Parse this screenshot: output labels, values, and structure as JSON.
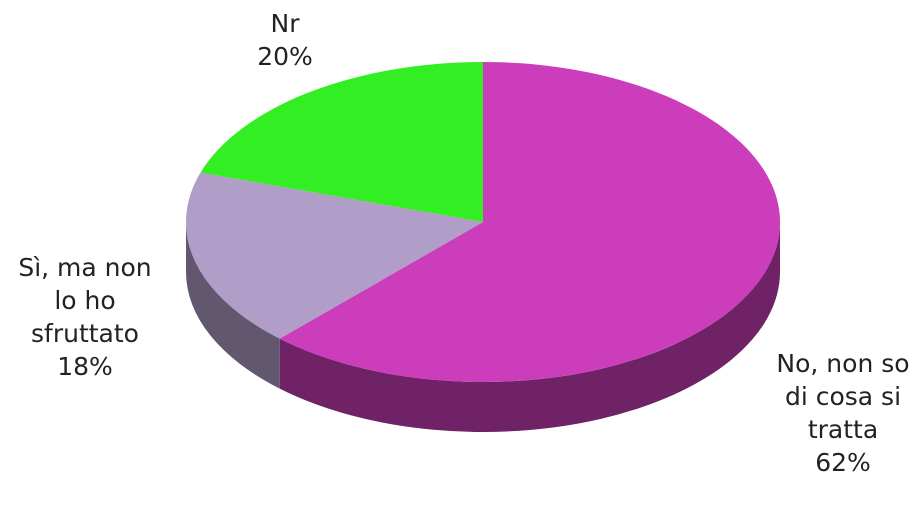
{
  "chart_data": {
    "type": "pie",
    "categories": [
      "No, non so di cosa si tratta",
      "Sì, ma non lo ho sfruttato",
      "Nr"
    ],
    "values": [
      62,
      18,
      20
    ],
    "value_labels": [
      "62%",
      "18%",
      "20%"
    ],
    "colors": [
      "#cc3dbb",
      "#b09ec8",
      "#33ee22"
    ]
  }
}
